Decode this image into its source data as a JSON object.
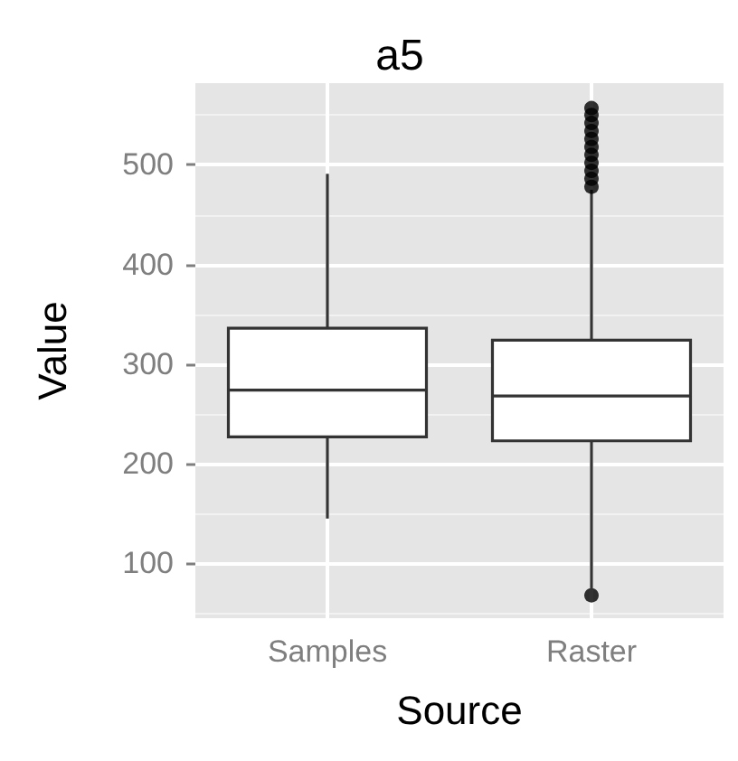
{
  "chart_data": {
    "type": "box",
    "title": "a5",
    "xlabel": "Source",
    "ylabel": "Value",
    "categories": [
      "Samples",
      "Raster"
    ],
    "boxes": [
      {
        "low": 145,
        "q1": 227,
        "median": 274,
        "q3": 336,
        "high": 491
      },
      {
        "low": 75,
        "q1": 223,
        "median": 268,
        "q3": 324,
        "high": 475,
        "outliers": [
          68,
          478,
          486,
          494,
          502,
          510,
          518,
          526,
          534,
          542,
          550,
          557
        ]
      }
    ],
    "ylim": [
      45,
      582
    ],
    "yticks": [
      100,
      200,
      300,
      400,
      500
    ],
    "grid": true
  }
}
